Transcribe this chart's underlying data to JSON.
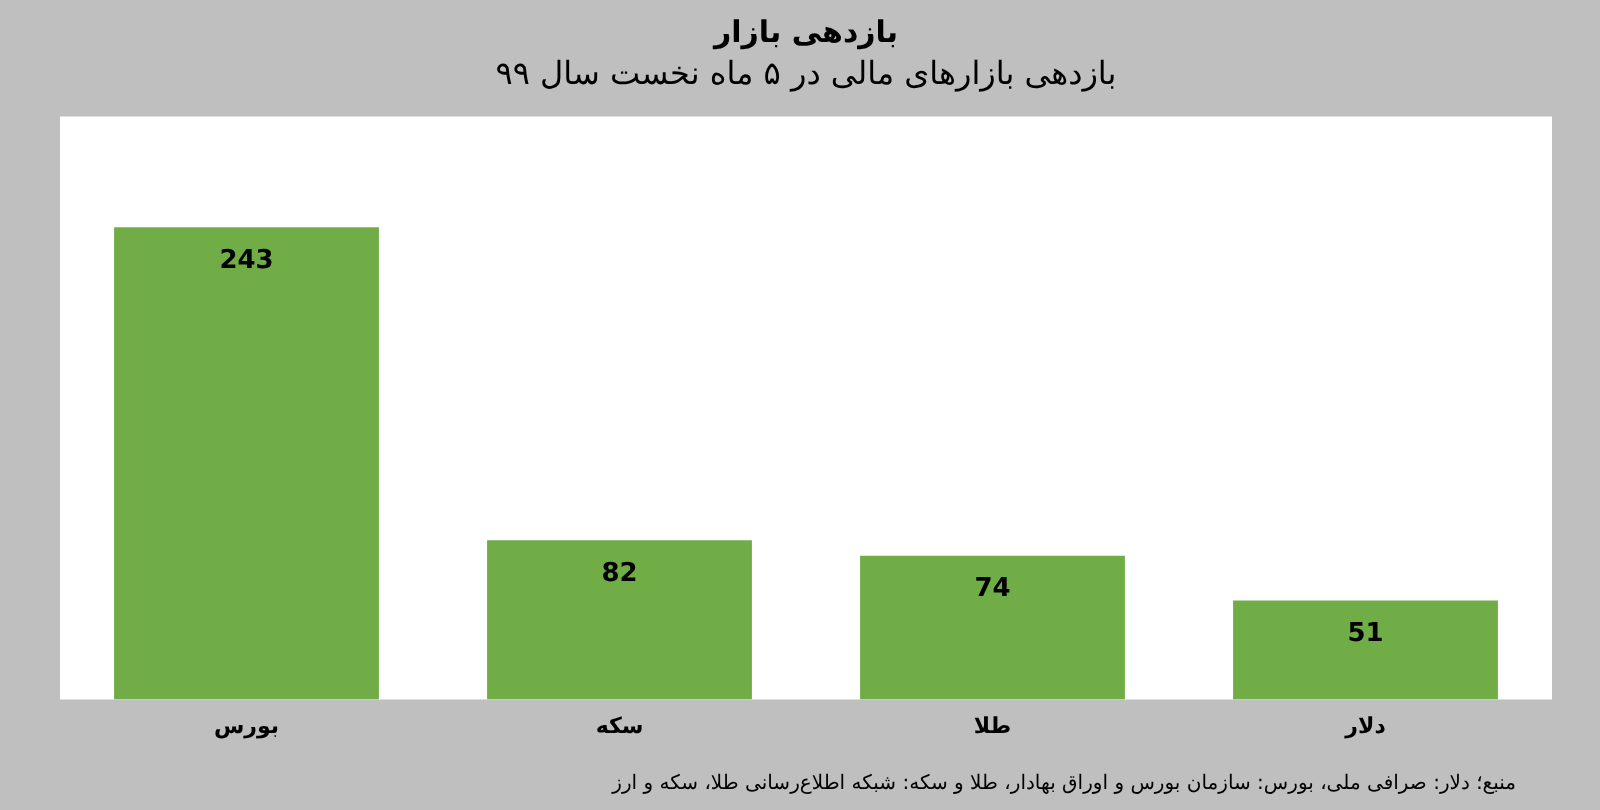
{
  "chart_data": {
    "type": "bar",
    "title": "بازدهی بازار",
    "subtitle": "بازدهی بازارهای مالی در ۵ ماه نخست سال ۹۹",
    "categories": [
      "بورس",
      "سکه",
      "طلا",
      "دلار"
    ],
    "values": [
      243,
      82,
      74,
      51
    ],
    "color": "#70ad47",
    "ylim": [
      0,
      300
    ],
    "tick_labels": "x",
    "data_labels": true,
    "annotations": [
      "منبع؛ دلار: صرافی ملی، بورس: سازمان بورس و اوراق بهادار، طلا و سکه: شبکه اطلاع‌رسانی طلا، سکه و ارز"
    ]
  }
}
